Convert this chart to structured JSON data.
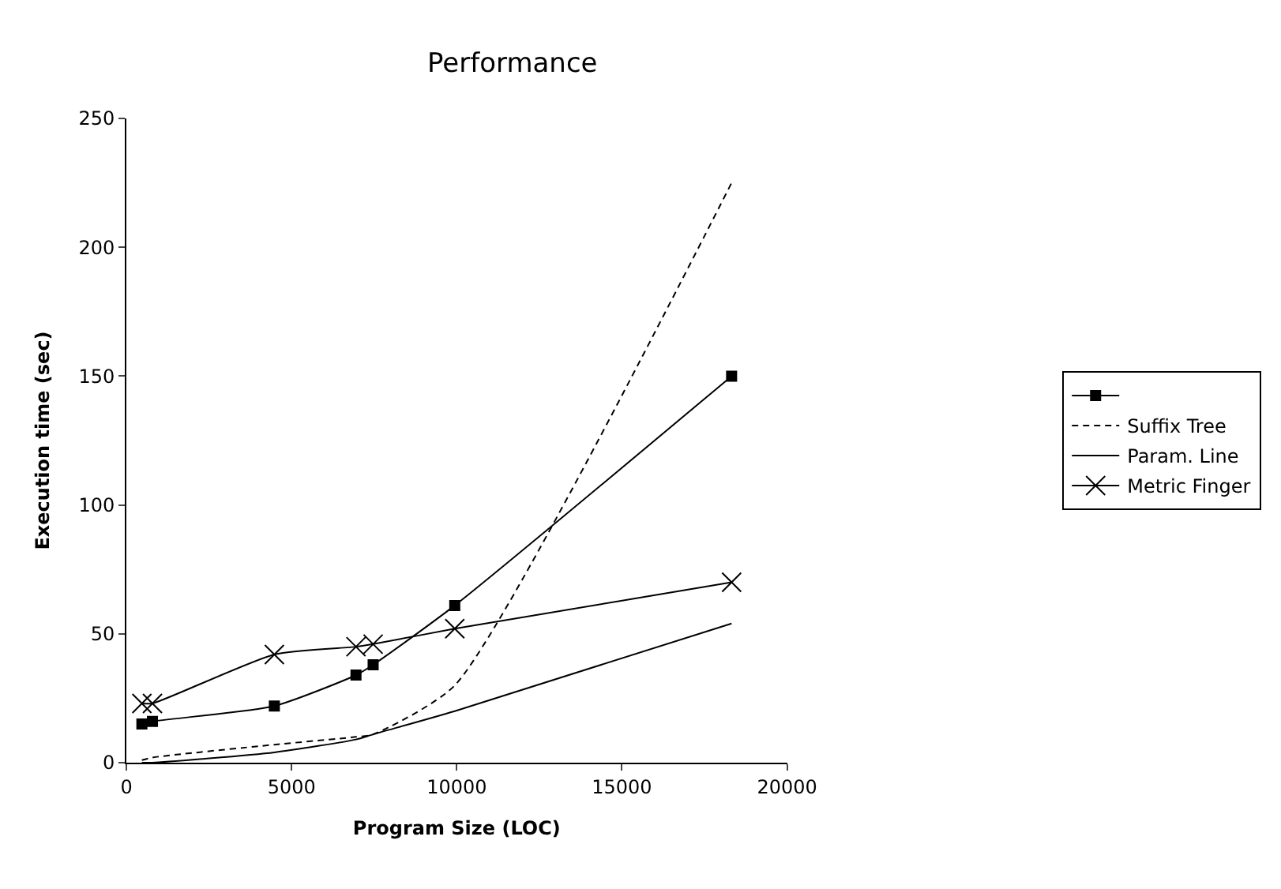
{
  "chart_data": {
    "type": "line",
    "title": "Performance",
    "xlabel": "Program Size (LOC)",
    "ylabel": "Execution time (sec)",
    "x": [
      470,
      790,
      4480,
      6950,
      7470,
      9940,
      18320
    ],
    "series": [
      {
        "color": "#000000",
        "marker": "square",
        "line_style": "solid",
        "values": [
          15,
          16,
          22,
          34,
          38,
          61,
          150
        ]
      },
      {
        "name": "Suffix Tree",
        "color": "#000000",
        "marker": "none",
        "line_style": "dashed",
        "values": [
          1,
          2,
          7,
          10,
          11,
          30,
          225
        ]
      },
      {
        "name": "Param. Line",
        "color": "#000000",
        "marker": "none",
        "line_style": "solid",
        "values": [
          0,
          0,
          4,
          9,
          11,
          20,
          54
        ]
      },
      {
        "name": "Metric Finger",
        "color": "#000000",
        "marker": "cross",
        "line_style": "solid",
        "values": [
          23,
          23,
          42,
          45,
          46,
          52,
          70
        ]
      }
    ],
    "xlim": [
      0,
      20000
    ],
    "xticks": [
      0,
      5000,
      10000,
      15000,
      20000
    ],
    "ylim": [
      0,
      250
    ],
    "yticks": [
      0,
      50,
      100,
      150,
      200,
      250
    ],
    "legend": "right"
  }
}
